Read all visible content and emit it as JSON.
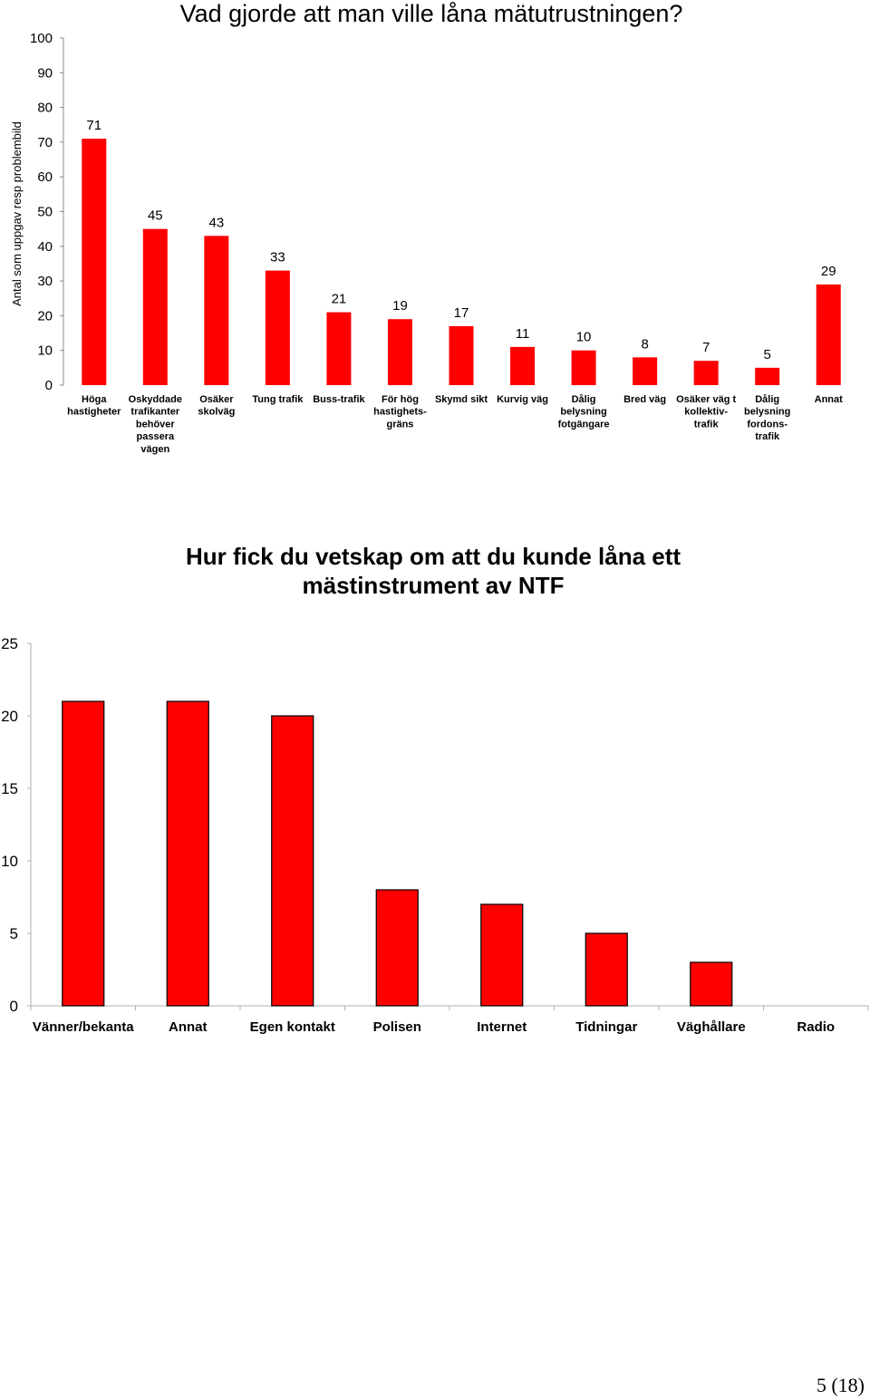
{
  "chart_data": [
    {
      "type": "bar",
      "title": "Vad gjorde att man ville låna mätutrustningen?",
      "ylabel": "Antal som uppgav resp problembild",
      "xlabel": "",
      "ylim": [
        0,
        100
      ],
      "yticks": [
        0,
        10,
        20,
        30,
        40,
        50,
        60,
        70,
        80,
        90,
        100
      ],
      "grid": false,
      "color": "#ff0000",
      "categories": [
        [
          "Höga",
          "hastigheter"
        ],
        [
          "Oskyddade",
          "trafikanter",
          "behöver",
          "passera",
          "vägen"
        ],
        [
          "Osäker",
          "skolväg"
        ],
        [
          "Tung trafik"
        ],
        [
          "Buss-trafik"
        ],
        [
          "För hög",
          "hastighets-",
          "gräns"
        ],
        [
          "Skymd sikt"
        ],
        [
          "Kurvig väg"
        ],
        [
          "Dålig",
          "belysning",
          "fotgängare"
        ],
        [
          "Bred väg"
        ],
        [
          "Osäker väg t",
          "kollektiv-",
          "trafik"
        ],
        [
          "Dålig",
          "belysning",
          "fordons-",
          "trafik"
        ],
        [
          "Annat"
        ]
      ],
      "values": [
        71,
        45,
        43,
        33,
        21,
        19,
        17,
        11,
        10,
        8,
        7,
        5,
        29
      ],
      "data_labels": true
    },
    {
      "type": "bar",
      "title": "Hur fick du vetskap om att du kunde låna ett mästinstrument av NTF",
      "title_lines": [
        "Hur fick du vetskap om att du kunde låna ett",
        "mästinstrument av NTF"
      ],
      "xlabel": "",
      "ylabel": "",
      "ylim": [
        0,
        25
      ],
      "yticks": [
        0,
        5,
        10,
        15,
        20,
        25
      ],
      "grid": false,
      "color": "#ff0000",
      "categories": [
        "Vänner/bekanta",
        "Annat",
        "Egen kontakt",
        "Polisen",
        "Internet",
        "Tidningar",
        "Väghållare",
        "Radio"
      ],
      "values": [
        21,
        21,
        20,
        8,
        7,
        5,
        3,
        0
      ]
    }
  ],
  "footer": {
    "page": "5 (18)"
  }
}
